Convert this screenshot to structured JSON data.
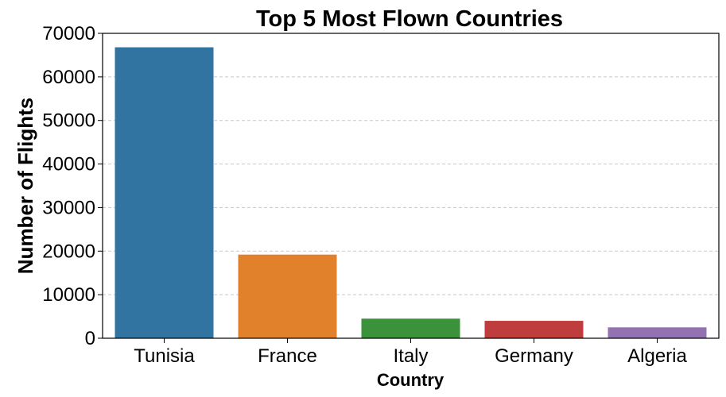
{
  "chart_data": {
    "type": "bar",
    "title": "Top 5 Most Flown Countries",
    "xlabel": "Country",
    "ylabel": "Number of Flights",
    "categories": [
      "Tunisia",
      "France",
      "Italy",
      "Germany",
      "Algeria"
    ],
    "values": [
      66800,
      19200,
      4500,
      4000,
      2500
    ],
    "colors": [
      "#3274a1",
      "#e1812c",
      "#3a923a",
      "#c03d3e",
      "#9372b2"
    ],
    "ylim": [
      0,
      70000
    ],
    "yticks": [
      0,
      10000,
      20000,
      30000,
      40000,
      50000,
      60000,
      70000
    ],
    "grid": "y-dashed"
  }
}
